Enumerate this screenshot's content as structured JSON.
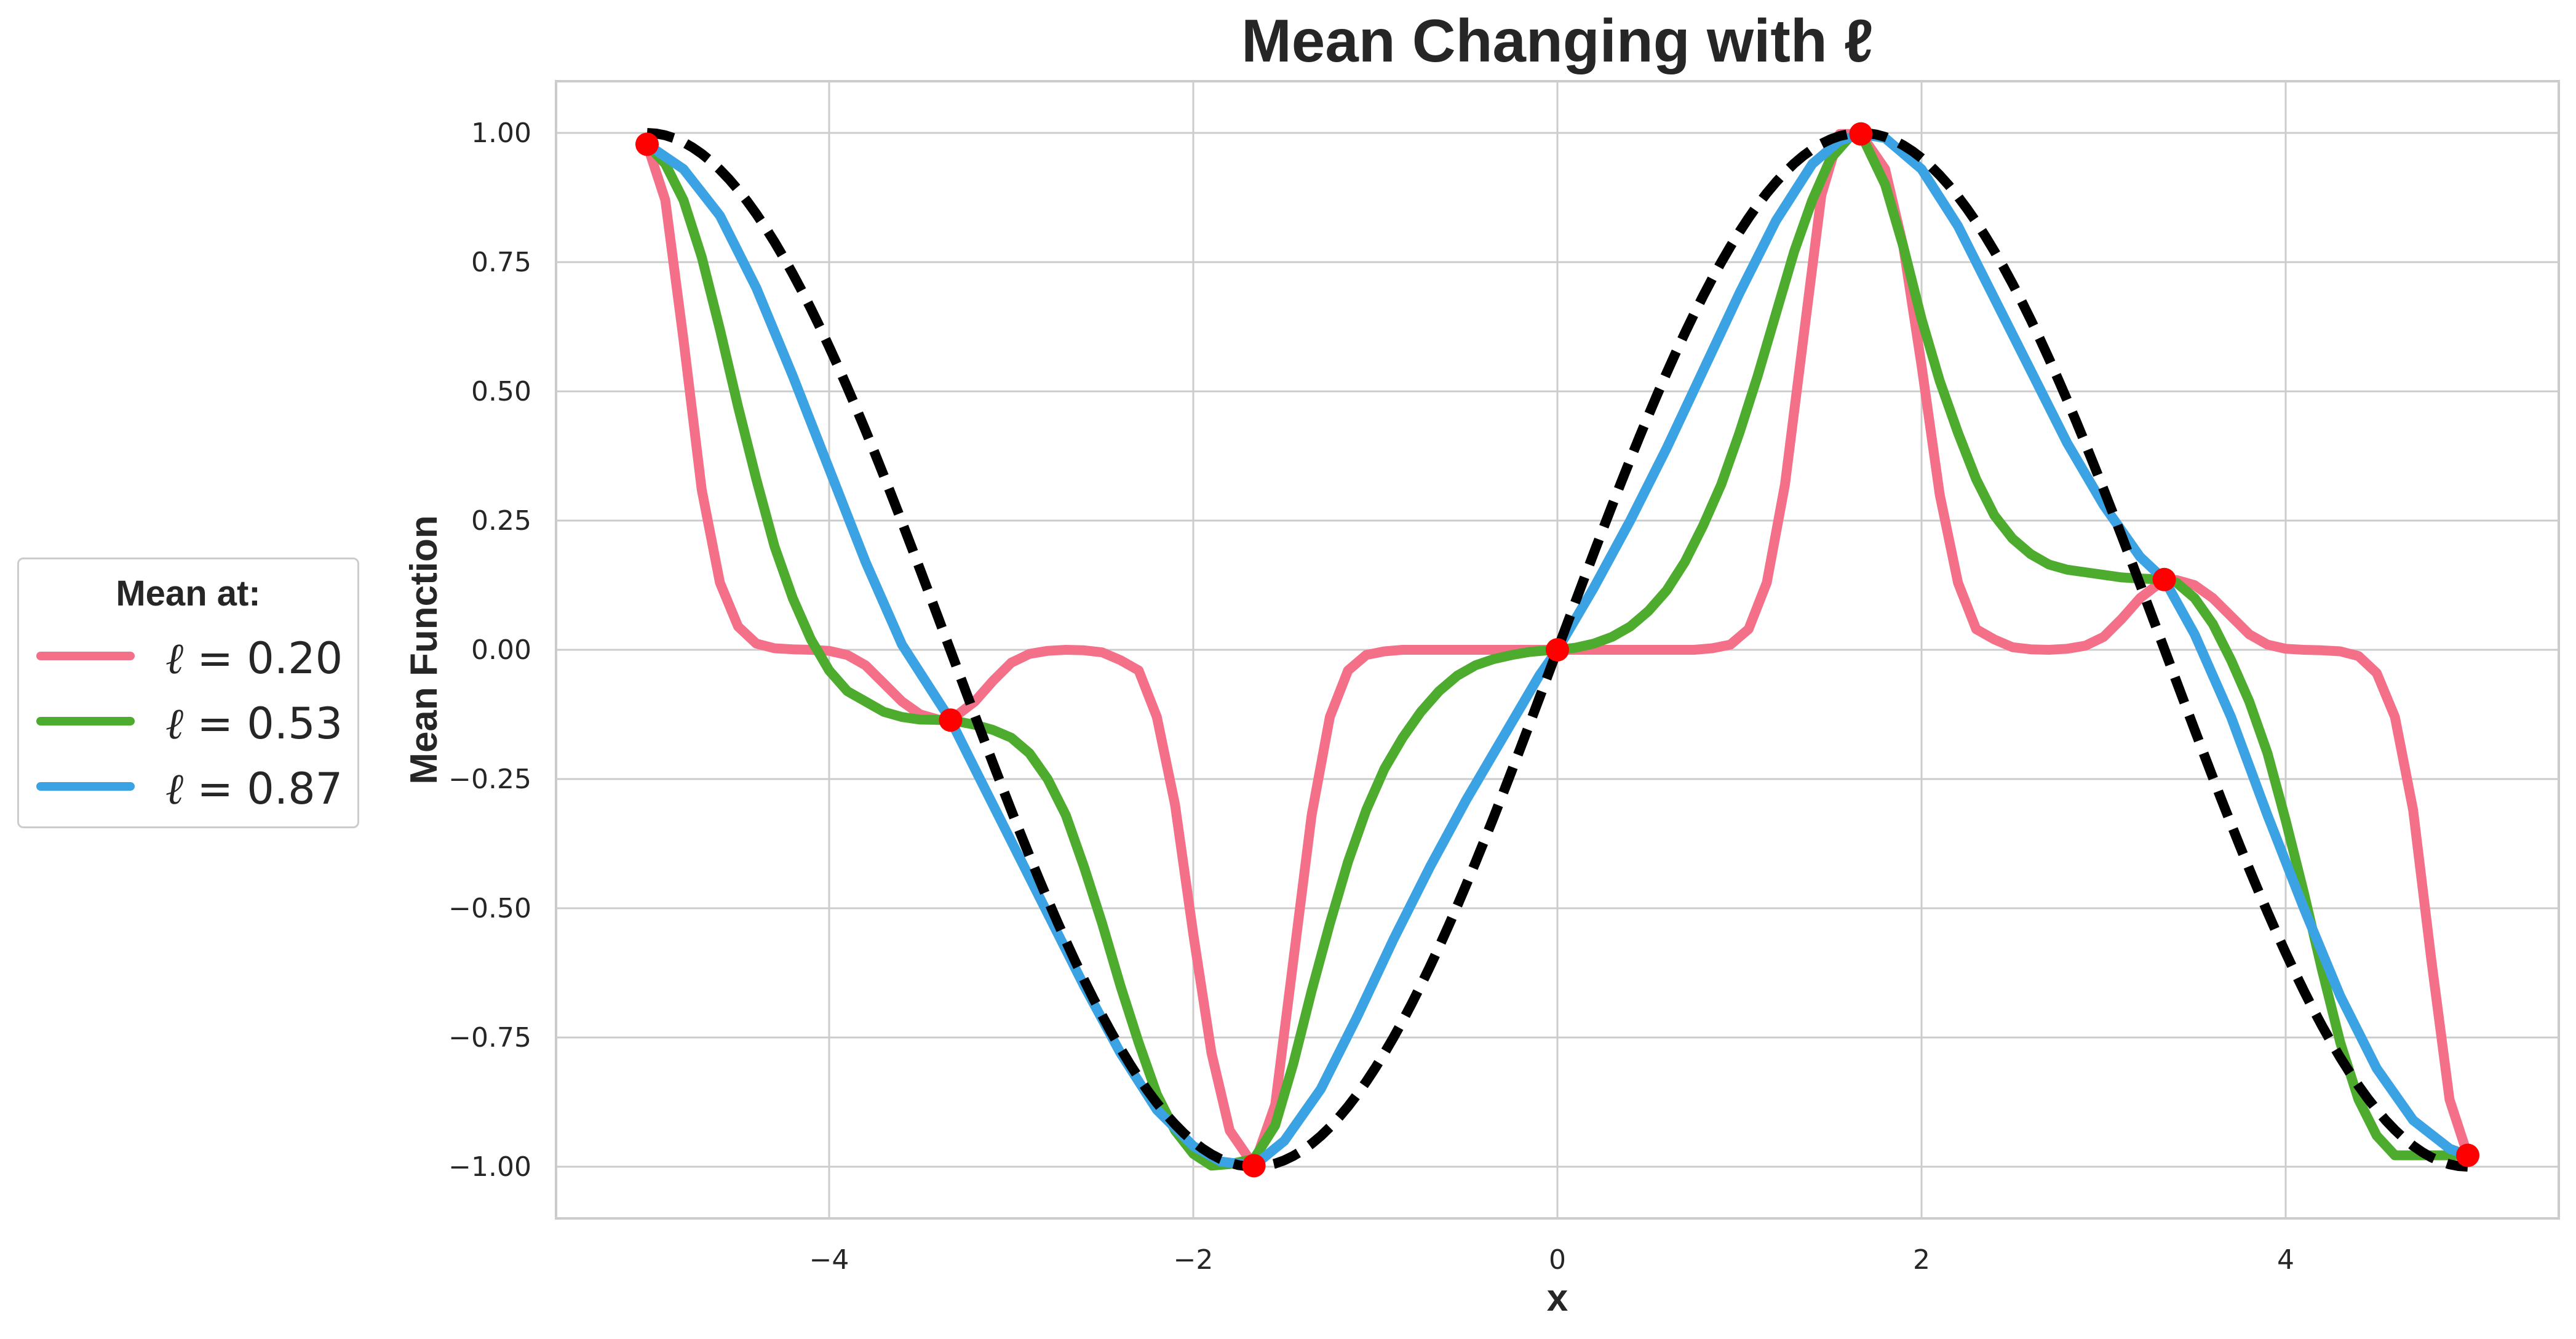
{
  "chart_data": {
    "type": "line",
    "title": "Mean Changing with ℓ",
    "xlabel": "x",
    "ylabel": "Mean Function",
    "xlim": [
      -5.5,
      5.5
    ],
    "ylim": [
      -1.1,
      1.1
    ],
    "grid": true,
    "x_ticks": [
      -4,
      -2,
      0,
      2,
      4
    ],
    "x_tick_labels": [
      "−4",
      "−2",
      "0",
      "2",
      "4"
    ],
    "y_ticks": [
      1.0,
      0.75,
      0.5,
      0.25,
      0.0,
      -0.25,
      -0.5,
      -0.75,
      -1.0
    ],
    "y_tick_labels": [
      "1.00",
      "0.75",
      "0.50",
      "0.25",
      "0.00",
      "−0.25",
      "−0.50",
      "−0.75",
      "−1.00"
    ],
    "legend": {
      "title": "Mean at:",
      "placement": "left",
      "entries": [
        {
          "symbol": "ℓ",
          "text": " = 0.20",
          "color": "#f37088"
        },
        {
          "symbol": "ℓ",
          "text": " = 0.53",
          "color": "#4dab2d"
        },
        {
          "symbol": "ℓ",
          "text": " = 0.87",
          "color": "#3ba3e3"
        }
      ]
    },
    "true_function": {
      "style": "dashed",
      "color": "#000000",
      "function": "sin(0.942 x)"
    },
    "observed_points": {
      "color": "#ff0000",
      "x": [
        -5.0,
        -3.333,
        -1.667,
        0.0,
        1.667,
        3.333,
        5.0
      ],
      "y": [
        0.978,
        -0.136,
        -0.998,
        0.0,
        0.998,
        0.136,
        -0.978
      ]
    },
    "series": [
      {
        "color": "#f37088",
        "lengthscale": 0.2,
        "x": [
          -5.0,
          -4.9,
          -4.8,
          -4.7,
          -4.6,
          -4.5,
          -4.4,
          -4.3,
          -4.2,
          -4.1,
          -4.0,
          -3.9,
          -3.8,
          -3.7,
          -3.6,
          -3.5,
          -3.4,
          -3.333,
          -3.2,
          -3.1,
          -3.0,
          -2.9,
          -2.8,
          -2.7,
          -2.6,
          -2.5,
          -2.4,
          -2.3,
          -2.2,
          -2.1,
          -2.0,
          -1.9,
          -1.8,
          -1.667,
          -1.55,
          -1.45,
          -1.35,
          -1.25,
          -1.15,
          -1.05,
          -0.95,
          -0.85,
          -0.75,
          -0.6,
          -0.4,
          -0.2,
          0.0,
          0.2,
          0.4,
          0.6,
          0.75,
          0.85,
          0.95,
          1.05,
          1.15,
          1.25,
          1.35,
          1.45,
          1.55,
          1.667,
          1.8,
          1.9,
          2.0,
          2.1,
          2.2,
          2.3,
          2.4,
          2.5,
          2.6,
          2.7,
          2.8,
          2.9,
          3.0,
          3.1,
          3.2,
          3.333,
          3.4,
          3.5,
          3.6,
          3.7,
          3.8,
          3.9,
          4.0,
          4.1,
          4.2,
          4.3,
          4.4,
          4.5,
          4.6,
          4.7,
          4.8,
          4.9,
          5.0
        ],
        "y": [
          0.978,
          0.87,
          0.6,
          0.31,
          0.13,
          0.045,
          0.012,
          0.003,
          0.001,
          0.0,
          -0.002,
          -0.01,
          -0.03,
          -0.065,
          -0.1,
          -0.125,
          -0.135,
          -0.136,
          -0.1,
          -0.06,
          -0.025,
          -0.008,
          -0.002,
          0.0,
          -0.001,
          -0.005,
          -0.02,
          -0.04,
          -0.13,
          -0.3,
          -0.55,
          -0.78,
          -0.93,
          -0.998,
          -0.88,
          -0.6,
          -0.32,
          -0.13,
          -0.04,
          -0.01,
          -0.003,
          0.0,
          0.0,
          0.0,
          0.0,
          0.0,
          0.0,
          0.0,
          0.0,
          0.0,
          0.0,
          0.003,
          0.01,
          0.04,
          0.13,
          0.32,
          0.6,
          0.88,
          0.998,
          0.998,
          0.93,
          0.78,
          0.55,
          0.3,
          0.13,
          0.04,
          0.02,
          0.005,
          0.001,
          0.0,
          0.002,
          0.008,
          0.025,
          0.06,
          0.1,
          0.136,
          0.135,
          0.125,
          0.1,
          0.065,
          0.03,
          0.01,
          0.002,
          0.0,
          -0.001,
          -0.003,
          -0.012,
          -0.045,
          -0.13,
          -0.31,
          -0.6,
          -0.87,
          -0.978
        ]
      },
      {
        "color": "#4dab2d",
        "lengthscale": 0.53,
        "x": [
          -5.0,
          -4.9,
          -4.8,
          -4.7,
          -4.6,
          -4.5,
          -4.4,
          -4.3,
          -4.2,
          -4.1,
          -4.0,
          -3.9,
          -3.8,
          -3.7,
          -3.6,
          -3.5,
          -3.333,
          -3.2,
          -3.1,
          -3.0,
          -2.9,
          -2.8,
          -2.7,
          -2.6,
          -2.5,
          -2.4,
          -2.3,
          -2.2,
          -2.1,
          -2.0,
          -1.9,
          -1.8,
          -1.667,
          -1.55,
          -1.45,
          -1.35,
          -1.25,
          -1.15,
          -1.05,
          -0.95,
          -0.85,
          -0.75,
          -0.65,
          -0.55,
          -0.45,
          -0.35,
          -0.25,
          -0.15,
          -0.05,
          0.0,
          0.1,
          0.2,
          0.3,
          0.4,
          0.5,
          0.6,
          0.7,
          0.8,
          0.9,
          1.0,
          1.1,
          1.2,
          1.3,
          1.4,
          1.5,
          1.6,
          1.667,
          1.8,
          1.9,
          2.0,
          2.1,
          2.2,
          2.3,
          2.4,
          2.5,
          2.6,
          2.7,
          2.8,
          2.9,
          3.0,
          3.1,
          3.2,
          3.333,
          3.4,
          3.5,
          3.6,
          3.7,
          3.8,
          3.9,
          4.0,
          4.1,
          4.2,
          4.3,
          4.4,
          4.5,
          4.6,
          4.7,
          4.8,
          4.9,
          5.0
        ],
        "y": [
          0.978,
          0.94,
          0.87,
          0.76,
          0.62,
          0.47,
          0.33,
          0.2,
          0.1,
          0.02,
          -0.04,
          -0.08,
          -0.1,
          -0.12,
          -0.13,
          -0.135,
          -0.136,
          -0.145,
          -0.155,
          -0.17,
          -0.2,
          -0.25,
          -0.32,
          -0.42,
          -0.53,
          -0.65,
          -0.76,
          -0.86,
          -0.93,
          -0.975,
          -0.998,
          -0.995,
          -0.985,
          -0.92,
          -0.8,
          -0.66,
          -0.53,
          -0.41,
          -0.31,
          -0.23,
          -0.17,
          -0.12,
          -0.08,
          -0.05,
          -0.03,
          -0.018,
          -0.01,
          -0.004,
          -0.001,
          0.0,
          0.004,
          0.012,
          0.025,
          0.045,
          0.075,
          0.115,
          0.17,
          0.24,
          0.32,
          0.42,
          0.53,
          0.65,
          0.77,
          0.87,
          0.95,
          0.99,
          0.998,
          0.9,
          0.78,
          0.64,
          0.52,
          0.42,
          0.33,
          0.26,
          0.215,
          0.185,
          0.165,
          0.155,
          0.15,
          0.145,
          0.14,
          0.138,
          0.136,
          0.13,
          0.1,
          0.05,
          -0.02,
          -0.1,
          -0.2,
          -0.33,
          -0.47,
          -0.62,
          -0.76,
          -0.87,
          -0.94,
          -0.978,
          -0.978,
          -0.978,
          -0.978,
          -0.978
        ]
      },
      {
        "color": "#3ba3e3",
        "lengthscale": 0.87,
        "x": [
          -5.0,
          -4.8,
          -4.6,
          -4.4,
          -4.2,
          -4.0,
          -3.8,
          -3.6,
          -3.333,
          -3.2,
          -3.0,
          -2.8,
          -2.6,
          -2.4,
          -2.2,
          -2.0,
          -1.85,
          -1.667,
          -1.5,
          -1.3,
          -1.1,
          -0.9,
          -0.7,
          -0.5,
          -0.3,
          -0.1,
          0.0,
          0.2,
          0.4,
          0.6,
          0.8,
          1.0,
          1.2,
          1.4,
          1.55,
          1.667,
          1.8,
          2.0,
          2.2,
          2.4,
          2.6,
          2.8,
          3.0,
          3.2,
          3.333,
          3.5,
          3.7,
          3.9,
          4.1,
          4.3,
          4.5,
          4.7,
          4.9,
          5.0
        ],
        "y": [
          0.978,
          0.93,
          0.84,
          0.7,
          0.53,
          0.35,
          0.17,
          0.01,
          -0.136,
          -0.23,
          -0.37,
          -0.51,
          -0.65,
          -0.78,
          -0.89,
          -0.96,
          -0.99,
          -0.998,
          -0.95,
          -0.85,
          -0.71,
          -0.56,
          -0.42,
          -0.29,
          -0.17,
          -0.05,
          0.0,
          0.12,
          0.25,
          0.39,
          0.54,
          0.69,
          0.83,
          0.94,
          0.985,
          0.998,
          0.99,
          0.93,
          0.82,
          0.68,
          0.54,
          0.4,
          0.28,
          0.18,
          0.136,
          0.03,
          -0.13,
          -0.32,
          -0.5,
          -0.67,
          -0.81,
          -0.91,
          -0.965,
          -0.978
        ]
      }
    ]
  }
}
